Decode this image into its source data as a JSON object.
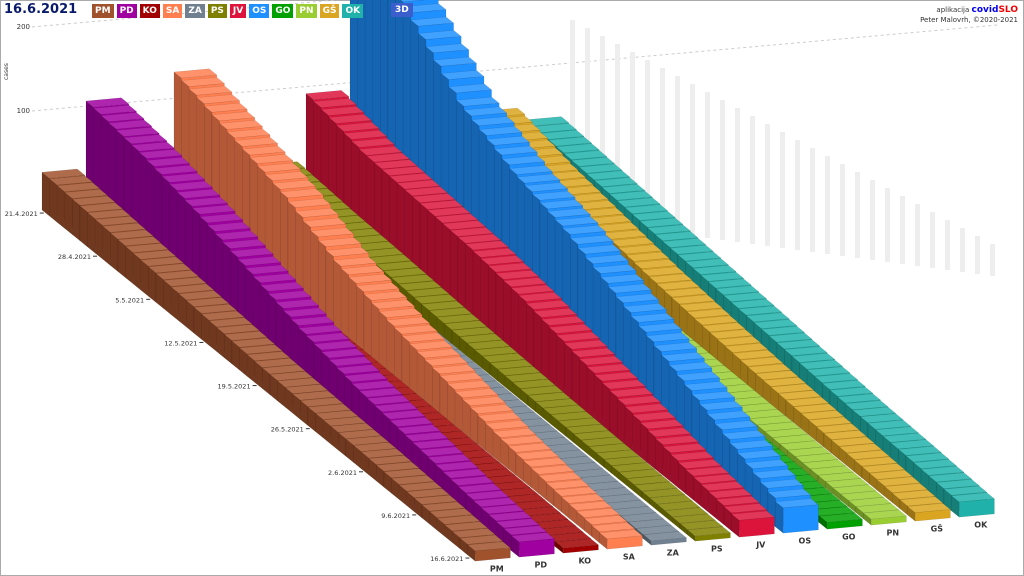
{
  "date": "16.6.2021",
  "mode_button": "3D",
  "credit": {
    "app": "aplikacija",
    "brand1": "covid",
    "brand2": "SLO",
    "author": "Peter Malovrh, ©2020-2021"
  },
  "chart_data": {
    "type": "bar3d",
    "ylabel": "cases",
    "yticks": [
      100,
      200
    ],
    "dates": [
      "21.4.2021",
      "28.4.2021",
      "5.5.2021",
      "12.5.2021",
      "19.5.2021",
      "26.5.2021",
      "2.6.2021",
      "9.6.2021",
      "16.6.2021"
    ],
    "series": [
      {
        "name": "PM",
        "color": "#a0522d",
        "values": [
          45,
          40,
          35,
          30,
          25,
          22,
          20,
          16,
          12
        ]
      },
      {
        "name": "PD",
        "color": "#a000a0",
        "values": [
          125,
          115,
          100,
          80,
          60,
          45,
          35,
          25,
          18
        ]
      },
      {
        "name": "KO",
        "color": "#a00000",
        "values": [
          15,
          14,
          13,
          12,
          11,
          10,
          9,
          8,
          6
        ]
      },
      {
        "name": "SA",
        "color": "#ff7f50",
        "values": [
          150,
          130,
          110,
          80,
          60,
          45,
          30,
          20,
          12
        ]
      },
      {
        "name": "ZA",
        "color": "#708090",
        "values": [
          12,
          12,
          11,
          10,
          9,
          8,
          7,
          6,
          5
        ]
      },
      {
        "name": "PS",
        "color": "#808000",
        "values": [
          30,
          25,
          22,
          18,
          15,
          12,
          10,
          8,
          6
        ]
      },
      {
        "name": "JV",
        "color": "#dc143c",
        "values": [
          110,
          95,
          90,
          85,
          75,
          60,
          45,
          30,
          20
        ]
      },
      {
        "name": "OS",
        "color": "#1e90ff",
        "values": [
          300,
          260,
          200,
          170,
          150,
          120,
          90,
          60,
          30
        ]
      },
      {
        "name": "GO",
        "color": "#00a000",
        "values": [
          25,
          22,
          20,
          18,
          16,
          14,
          12,
          10,
          8
        ]
      },
      {
        "name": "PN",
        "color": "#9acd32",
        "values": [
          15,
          14,
          13,
          12,
          11,
          10,
          9,
          8,
          7
        ]
      },
      {
        "name": "GŠ",
        "color": "#daa520",
        "values": [
          70,
          55,
          45,
          35,
          28,
          22,
          18,
          14,
          10
        ]
      },
      {
        "name": "OK",
        "color": "#20b2aa",
        "values": [
          55,
          50,
          45,
          40,
          35,
          30,
          25,
          22,
          18
        ]
      }
    ]
  }
}
